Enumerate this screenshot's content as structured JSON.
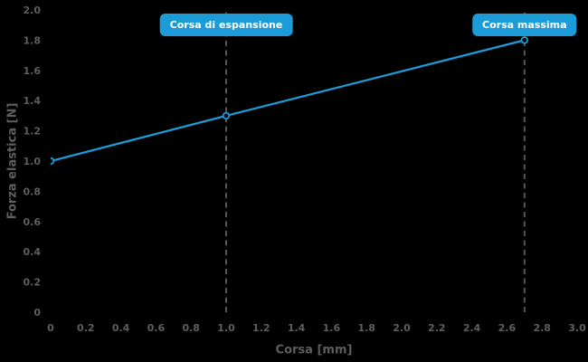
{
  "chart_data": {
    "type": "line",
    "title": "",
    "xlabel": "Corsa [mm]",
    "ylabel": "Forza elastica [N]",
    "xlim": [
      0,
      3.0
    ],
    "ylim": [
      0,
      2.0
    ],
    "x_ticks": [
      "0",
      "0.2",
      "0.4",
      "0.6",
      "0.8",
      "1.0",
      "1.2",
      "1.4",
      "1.6",
      "1.8",
      "2.0",
      "2.2",
      "2.4",
      "2.6",
      "2.8",
      "3.0"
    ],
    "y_ticks": [
      "0",
      "0.2",
      "0.4",
      "0.6",
      "0.8",
      "1.0",
      "1.2",
      "1.4",
      "1.6",
      "1.8",
      "2.0"
    ],
    "grid": false,
    "legend": false,
    "series": [
      {
        "name": "Forza elastica",
        "x": [
          0,
          1.0,
          2.7
        ],
        "y": [
          1.0,
          1.3,
          1.8
        ]
      }
    ],
    "annotations": [
      {
        "label": "Corsa di espansione",
        "x": 1.0
      },
      {
        "label": "Corsa massima",
        "x": 2.7
      }
    ]
  },
  "colors": {
    "background": "#000000",
    "accent_blue": "#1b9bd7",
    "axis_text": "#5e5e5e",
    "dashed_line": "#555555",
    "annotation_text": "#ffffff",
    "marker_fill": "#0a0a0a"
  }
}
